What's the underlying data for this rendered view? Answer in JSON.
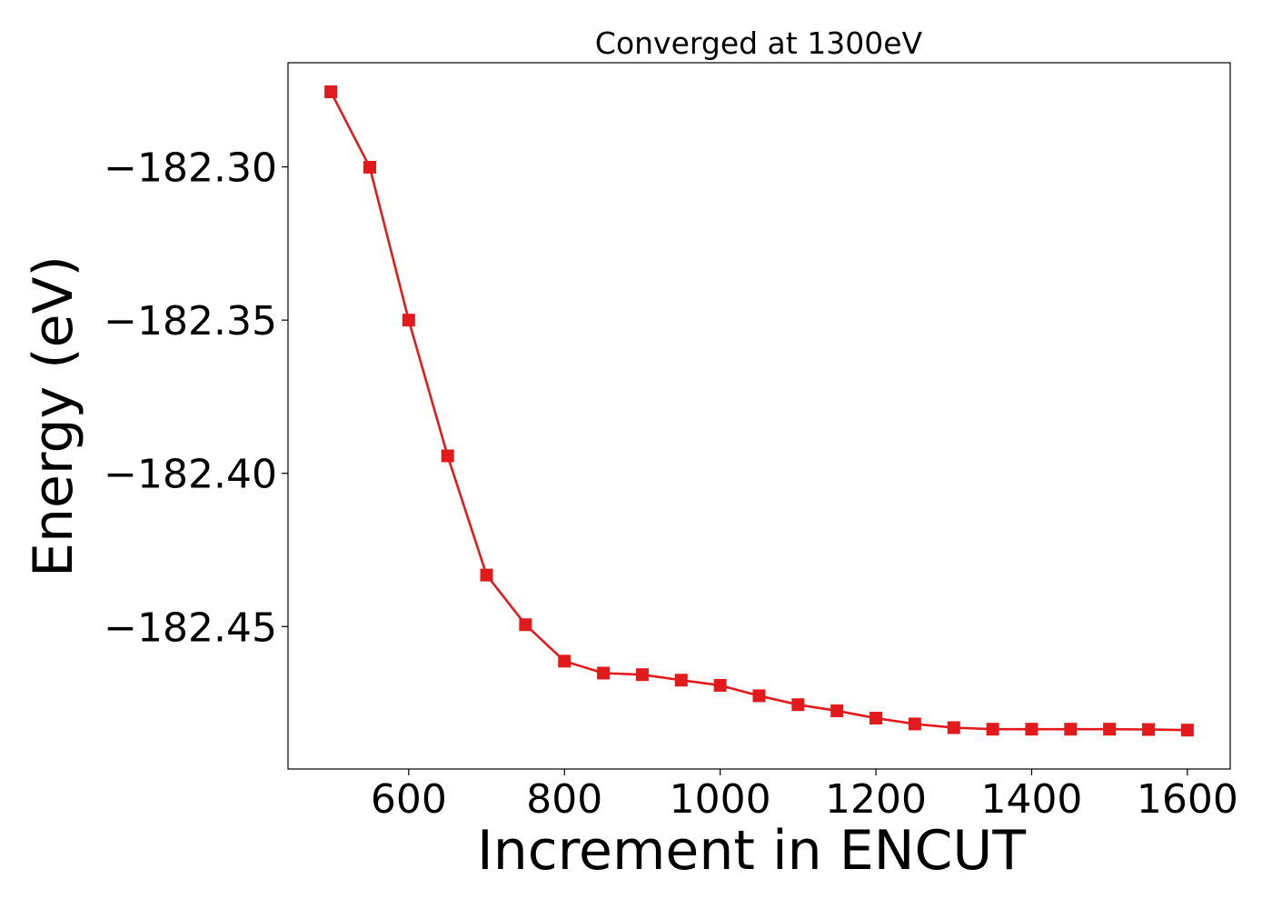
{
  "chart_data": {
    "type": "line",
    "title": "Converged at 1300eV",
    "xlabel": "Increment in ENCUT",
    "ylabel": "Energy (eV)",
    "xlim": [
      445,
      1655
    ],
    "ylim": [
      -182.4965,
      -182.266
    ],
    "xticks": [
      600,
      800,
      1000,
      1200,
      1400,
      1600
    ],
    "xtick_labels": [
      "600",
      "800",
      "1000",
      "1200",
      "1400",
      "1600"
    ],
    "yticks": [
      -182.3,
      -182.35,
      -182.4,
      -182.45
    ],
    "ytick_labels": [
      "−182.30",
      "−182.35",
      "−182.40",
      "−182.45"
    ],
    "grid": false,
    "series": [
      {
        "color": "#e31a1c",
        "marker": "square",
        "x": [
          500,
          550,
          600,
          650,
          700,
          750,
          800,
          850,
          900,
          950,
          1000,
          1050,
          1100,
          1150,
          1200,
          1250,
          1300,
          1350,
          1400,
          1450,
          1500,
          1550,
          1600
        ],
        "y": [
          -182.2755,
          -182.3001,
          -182.35,
          -182.3943,
          -182.4332,
          -182.4494,
          -182.4613,
          -182.4652,
          -182.4657,
          -182.4675,
          -182.4692,
          -182.4726,
          -182.4755,
          -182.4775,
          -182.4799,
          -182.4818,
          -182.483,
          -182.4835,
          -182.4835,
          -182.4835,
          -182.4835,
          -182.4836,
          -182.4838
        ]
      }
    ]
  }
}
